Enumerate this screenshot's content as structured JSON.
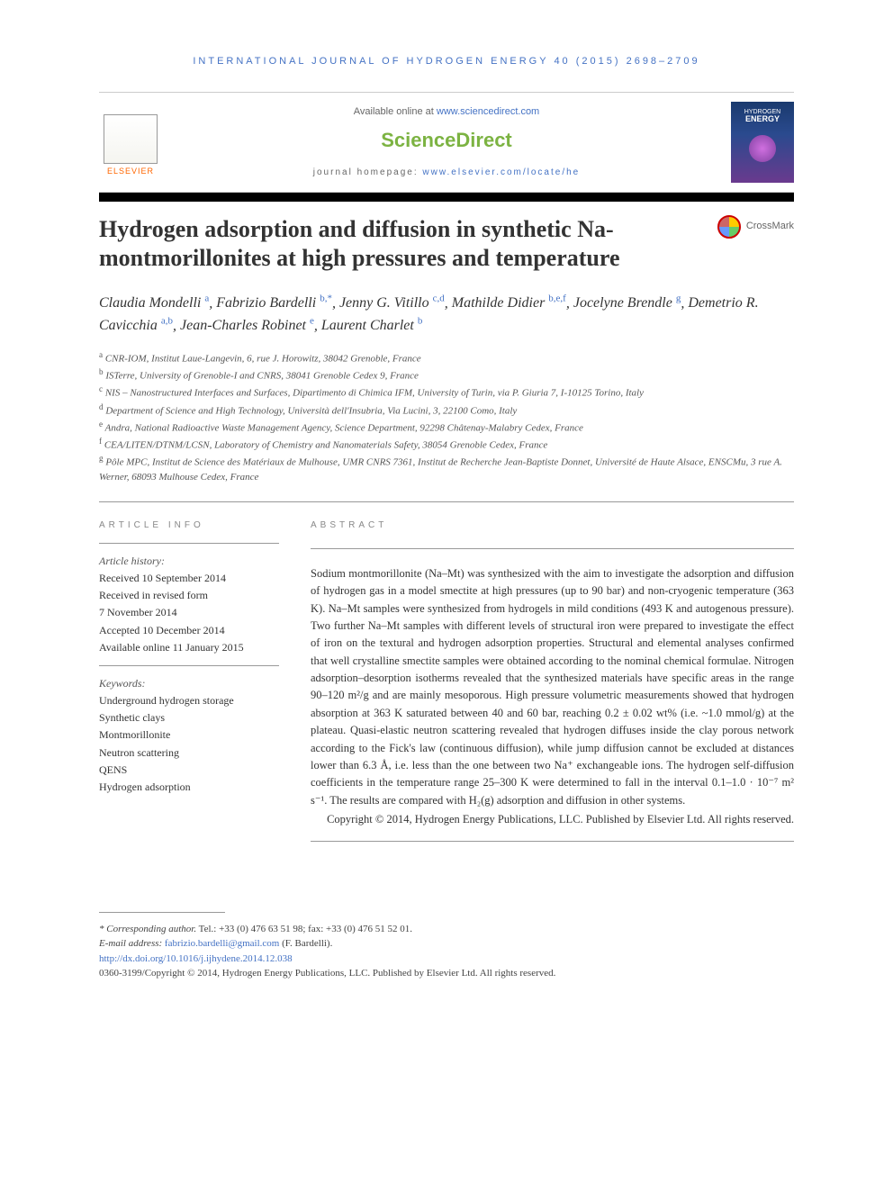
{
  "journal_header": "INTERNATIONAL JOURNAL OF HYDROGEN ENERGY 40 (2015) 2698–2709",
  "header": {
    "available_online_prefix": "Available online at ",
    "available_online_link": "www.sciencedirect.com",
    "sciencedirect": "ScienceDirect",
    "homepage_prefix": "journal homepage: ",
    "homepage_link": "www.elsevier.com/locate/he",
    "elsevier_label": "ELSEVIER",
    "cover_title_line1": "HYDROGEN",
    "cover_title_line2": "ENERGY"
  },
  "crossmark_label": "CrossMark",
  "title": "Hydrogen adsorption and diffusion in synthetic Na-montmorillonites at high pressures and temperature",
  "authors": [
    {
      "name": "Claudia Mondelli",
      "aff": "a"
    },
    {
      "name": "Fabrizio Bardelli",
      "aff": "b,*"
    },
    {
      "name": "Jenny G. Vitillo",
      "aff": "c,d"
    },
    {
      "name": "Mathilde Didier",
      "aff": "b,e,f"
    },
    {
      "name": "Jocelyne Brendle",
      "aff": "g"
    },
    {
      "name": "Demetrio R. Cavicchia",
      "aff": "a,b"
    },
    {
      "name": "Jean-Charles Robinet",
      "aff": "e"
    },
    {
      "name": "Laurent Charlet",
      "aff": "b"
    }
  ],
  "affiliations": {
    "a": "CNR-IOM, Institut Laue-Langevin, 6, rue J. Horowitz, 38042 Grenoble, France",
    "b": "ISTerre, University of Grenoble-I and CNRS, 38041 Grenoble Cedex 9, France",
    "c": "NIS – Nanostructured Interfaces and Surfaces, Dipartimento di Chimica IFM, University of Turin, via P. Giuria 7, I-10125 Torino, Italy",
    "d": "Department of Science and High Technology, Università dell'Insubria, Via Lucini, 3, 22100 Como, Italy",
    "e": "Andra, National Radioactive Waste Management Agency, Science Department, 92298 Châtenay-Malabry Cedex, France",
    "f": "CEA/LITEN/DTNM/LCSN, Laboratory of Chemistry and Nanomaterials Safety, 38054 Grenoble Cedex, France",
    "g": "Pôle MPC, Institut de Science des Matériaux de Mulhouse, UMR CNRS 7361, Institut de Recherche Jean-Baptiste Donnet, Université de Haute Alsace, ENSCMu, 3 rue A. Werner, 68093 Mulhouse Cedex, France"
  },
  "article_info_header": "ARTICLE INFO",
  "abstract_header": "ABSTRACT",
  "article_history": {
    "label": "Article history:",
    "received": "Received 10 September 2014",
    "revised_label": "Received in revised form",
    "revised_date": "7 November 2014",
    "accepted": "Accepted 10 December 2014",
    "online": "Available online 11 January 2015"
  },
  "keywords": {
    "label": "Keywords:",
    "items": [
      "Underground hydrogen storage",
      "Synthetic clays",
      "Montmorillonite",
      "Neutron scattering",
      "QENS",
      "Hydrogen adsorption"
    ]
  },
  "abstract": "Sodium montmorillonite (Na–Mt) was synthesized with the aim to investigate the adsorption and diffusion of hydrogen gas in a model smectite at high pressures (up to 90 bar) and non-cryogenic temperature (363 K). Na–Mt samples were synthesized from hydrogels in mild conditions (493 K and autogenous pressure). Two further Na–Mt samples with different levels of structural iron were prepared to investigate the effect of iron on the textural and hydrogen adsorption properties. Structural and elemental analyses confirmed that well crystalline smectite samples were obtained according to the nominal chemical formulae. Nitrogen adsorption–desorption isotherms revealed that the synthesized materials have specific areas in the range 90–120 m²/g and are mainly mesoporous. High pressure volumetric measurements showed that hydrogen absorption at 363 K saturated between 40 and 60 bar, reaching 0.2 ± 0.02 wt% (i.e. ~1.0 mmol/g) at the plateau. Quasi-elastic neutron scattering revealed that hydrogen diffuses inside the clay porous network according to the Fick's law (continuous diffusion), while jump diffusion cannot be excluded at distances lower than 6.3 Å, i.e. less than the one between two Na⁺ exchangeable ions. The hydrogen self-diffusion coefficients in the temperature range 25–300 K were determined to fall in the interval 0.1–1.0 · 10⁻⁷ m² s⁻¹. The results are compared with H₂(g) adsorption and diffusion in other systems.",
  "copyright_abstract": "Copyright © 2014, Hydrogen Energy Publications, LLC. Published by Elsevier Ltd. All rights reserved.",
  "footer": {
    "corr_label": "* Corresponding author.",
    "corr_tel": " Tel.: +33 (0) 476 63 51 98; fax: +33 (0) 476 51 52 01.",
    "email_label": "E-mail address: ",
    "email": "fabrizio.bardelli@gmail.com",
    "email_suffix": " (F. Bardelli).",
    "doi": "http://dx.doi.org/10.1016/j.ijhydene.2014.12.038",
    "issn_copyright": "0360-3199/Copyright © 2014, Hydrogen Energy Publications, LLC. Published by Elsevier Ltd. All rights reserved."
  },
  "colors": {
    "link": "#4472c4",
    "sciencedirect": "#7cb342",
    "elsevier": "#ff6600",
    "text": "#333333"
  }
}
